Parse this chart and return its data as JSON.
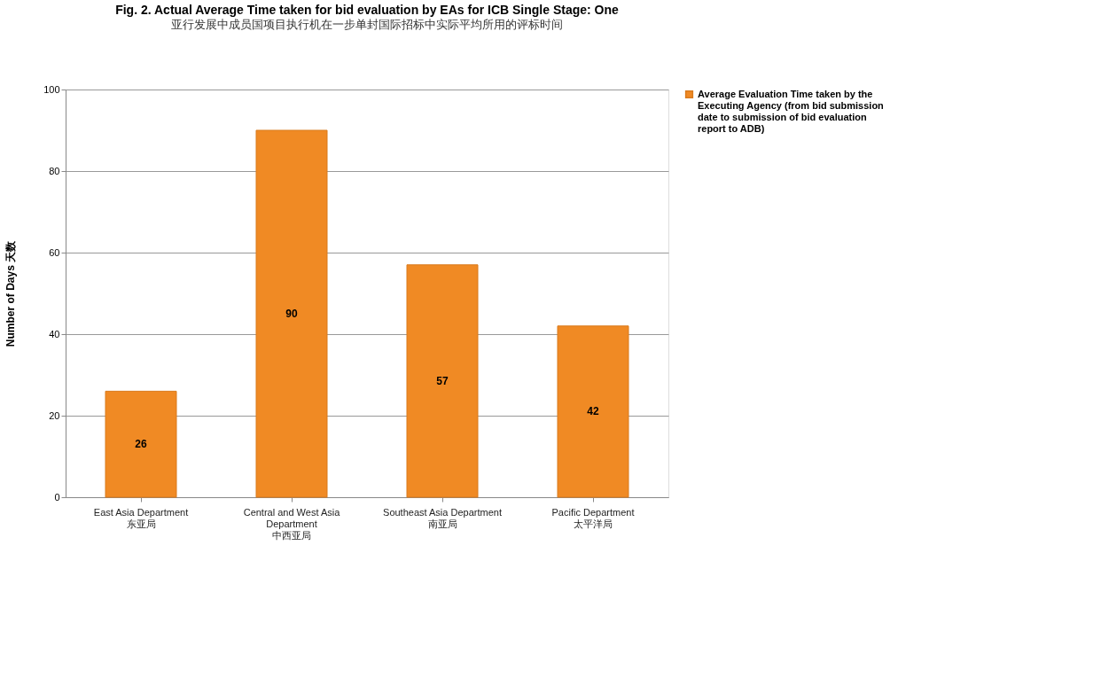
{
  "chart_data": {
    "type": "bar",
    "title": "Fig. 2. Actual Average Time taken for bid evaluation by EAs for ICB  Single Stage: One",
    "subtitle": "亚行发展中成员国项目执行机在一步单封国际招标中实际平均所用的评标时间",
    "ylabel": "Number of Days  天数",
    "categories": [
      "East Asia Department\n东亚局",
      "Central and West Asia\nDepartment\n中西亚局",
      "Southeast Asia Department\n南亚局",
      "Pacific Department\n太平洋局"
    ],
    "series": [
      {
        "name": "Average Evaluation Time taken by the Executing Agency (from bid submission date to submission of bid evaluation report to ADB)",
        "color": "#f08a24",
        "values": [
          26,
          90,
          57,
          42
        ]
      }
    ],
    "ylim": [
      0,
      100
    ],
    "yticks": [
      0,
      20,
      40,
      60,
      80,
      100
    ],
    "grid": "y",
    "legend": "right",
    "data_labels": true
  }
}
